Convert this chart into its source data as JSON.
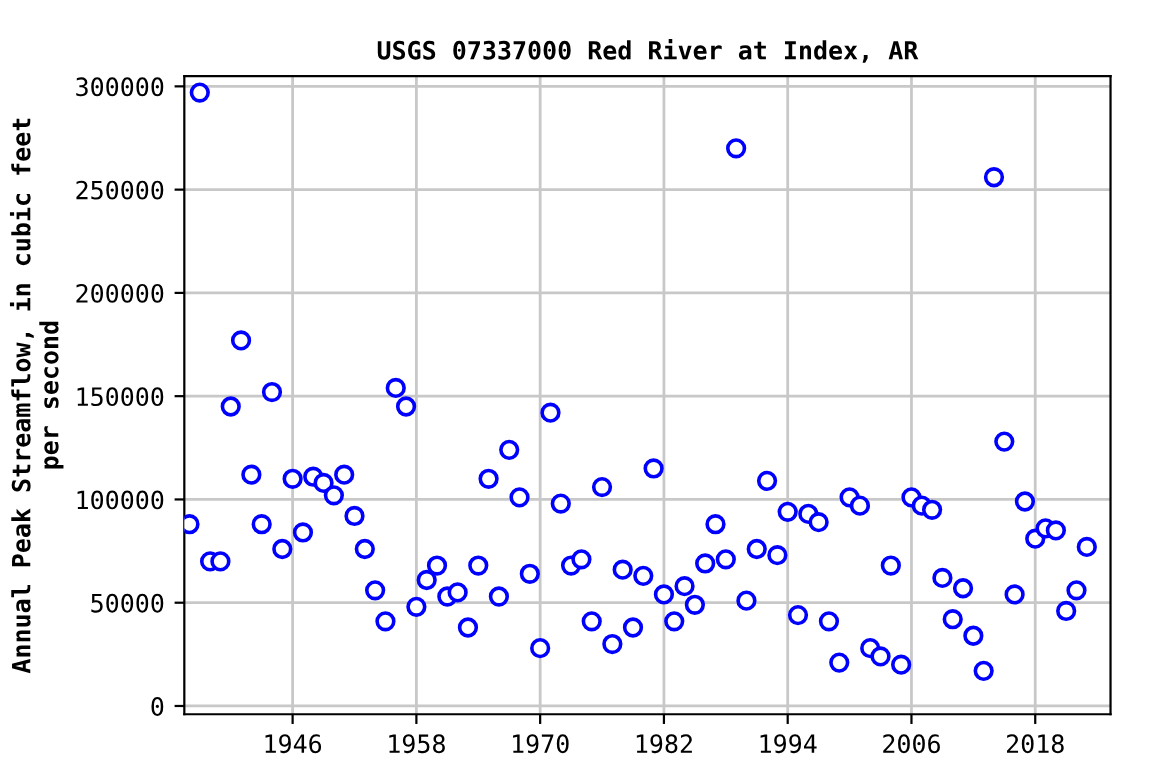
{
  "chart_data": {
    "type": "scatter",
    "title": "USGS 07337000 Red River at Index, AR",
    "ylabel": "Annual Peak Streamflow, in cubic feet\nper second",
    "x": [
      1936,
      1937,
      1938,
      1939,
      1940,
      1941,
      1942,
      1943,
      1944,
      1945,
      1946,
      1947,
      1948,
      1949,
      1950,
      1951,
      1952,
      1953,
      1954,
      1955,
      1956,
      1957,
      1958,
      1959,
      1960,
      1961,
      1962,
      1963,
      1964,
      1965,
      1966,
      1967,
      1968,
      1969,
      1970,
      1971,
      1972,
      1973,
      1974,
      1975,
      1976,
      1977,
      1978,
      1979,
      1980,
      1981,
      1982,
      1983,
      1984,
      1985,
      1986,
      1987,
      1988,
      1989,
      1990,
      1991,
      1992,
      1993,
      1994,
      1995,
      1996,
      1997,
      1998,
      1999,
      2000,
      2001,
      2002,
      2003,
      2004,
      2005,
      2006,
      2007,
      2008,
      2009,
      2010,
      2011,
      2012,
      2013,
      2014,
      2015,
      2016,
      2017,
      2018,
      2019,
      2020,
      2021,
      2022,
      2023
    ],
    "series": [
      {
        "color": "#0000ff",
        "values": [
          88000,
          297000,
          70000,
          70000,
          145000,
          177000,
          112000,
          88000,
          152000,
          76000,
          110000,
          84000,
          111000,
          108000,
          102000,
          112000,
          92000,
          76000,
          56000,
          41000,
          154000,
          145000,
          48000,
          61000,
          68000,
          53000,
          55000,
          38000,
          68000,
          110000,
          53000,
          124000,
          101000,
          64000,
          28000,
          142000,
          98000,
          68000,
          71000,
          41000,
          106000,
          30000,
          66000,
          38000,
          63000,
          115000,
          54000,
          41000,
          58000,
          49000,
          69000,
          88000,
          71000,
          270000,
          51000,
          76000,
          109000,
          73000,
          94000,
          44000,
          93000,
          89000,
          41000,
          21000,
          101000,
          97000,
          28000,
          24000,
          68000,
          20000,
          101000,
          97000,
          95000,
          62000,
          42000,
          57000,
          34000,
          17000,
          256000,
          128000,
          54000,
          99000,
          81000,
          86000,
          85000,
          46000,
          56000,
          77000
        ]
      }
    ],
    "xlim": [
      1935.5,
      2025.3
    ],
    "xticks": [
      1946,
      1958,
      1970,
      1982,
      1994,
      2006,
      2018
    ],
    "ylim": [
      -4000,
      305000
    ],
    "yticks": [
      0,
      50000,
      100000,
      150000,
      200000,
      250000,
      300000
    ],
    "grid": true,
    "marker": "circle"
  }
}
